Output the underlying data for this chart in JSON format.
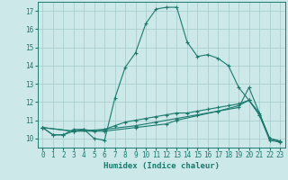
{
  "xlabel": "Humidex (Indice chaleur)",
  "xlim": [
    -0.5,
    23.5
  ],
  "ylim": [
    9.5,
    17.5
  ],
  "yticks": [
    10,
    11,
    12,
    13,
    14,
    15,
    16,
    17
  ],
  "xticks": [
    0,
    1,
    2,
    3,
    4,
    5,
    6,
    7,
    8,
    9,
    10,
    11,
    12,
    13,
    14,
    15,
    16,
    17,
    18,
    19,
    20,
    21,
    22,
    23
  ],
  "bg_color": "#cce8e8",
  "grid_color": "#aacfcf",
  "line_color": "#1a7a6e",
  "lines": [
    {
      "x": [
        0,
        1,
        2,
        3,
        4,
        5,
        6,
        7,
        8,
        9,
        10,
        11,
        12,
        13,
        14,
        15,
        16,
        17,
        18,
        19,
        20,
        21,
        22,
        23
      ],
      "y": [
        10.6,
        10.2,
        10.2,
        10.5,
        10.5,
        10.0,
        9.9,
        12.2,
        13.9,
        14.7,
        16.3,
        17.1,
        17.2,
        17.2,
        15.3,
        14.5,
        14.6,
        14.4,
        14.0,
        12.8,
        12.1,
        11.3,
        9.9,
        9.8
      ]
    },
    {
      "x": [
        0,
        1,
        2,
        3,
        4,
        5,
        6,
        7,
        8,
        9,
        10,
        11,
        12,
        13,
        14,
        15,
        16,
        17,
        18,
        19,
        20,
        21,
        22,
        23
      ],
      "y": [
        10.6,
        10.2,
        10.2,
        10.4,
        10.5,
        10.4,
        10.5,
        10.7,
        10.9,
        11.0,
        11.1,
        11.2,
        11.3,
        11.4,
        11.4,
        11.5,
        11.6,
        11.7,
        11.8,
        11.9,
        12.1,
        11.4,
        10.0,
        9.85
      ]
    },
    {
      "x": [
        0,
        3,
        6,
        9,
        11,
        13,
        15,
        17,
        19,
        20,
        21,
        22,
        23
      ],
      "y": [
        10.6,
        10.4,
        10.5,
        10.7,
        10.9,
        11.1,
        11.3,
        11.5,
        11.8,
        12.1,
        11.3,
        10.0,
        9.85
      ]
    },
    {
      "x": [
        0,
        3,
        6,
        9,
        12,
        13,
        17,
        19,
        20,
        22,
        23
      ],
      "y": [
        10.6,
        10.4,
        10.4,
        10.6,
        10.8,
        11.0,
        11.5,
        11.7,
        12.8,
        10.0,
        9.85
      ]
    }
  ]
}
